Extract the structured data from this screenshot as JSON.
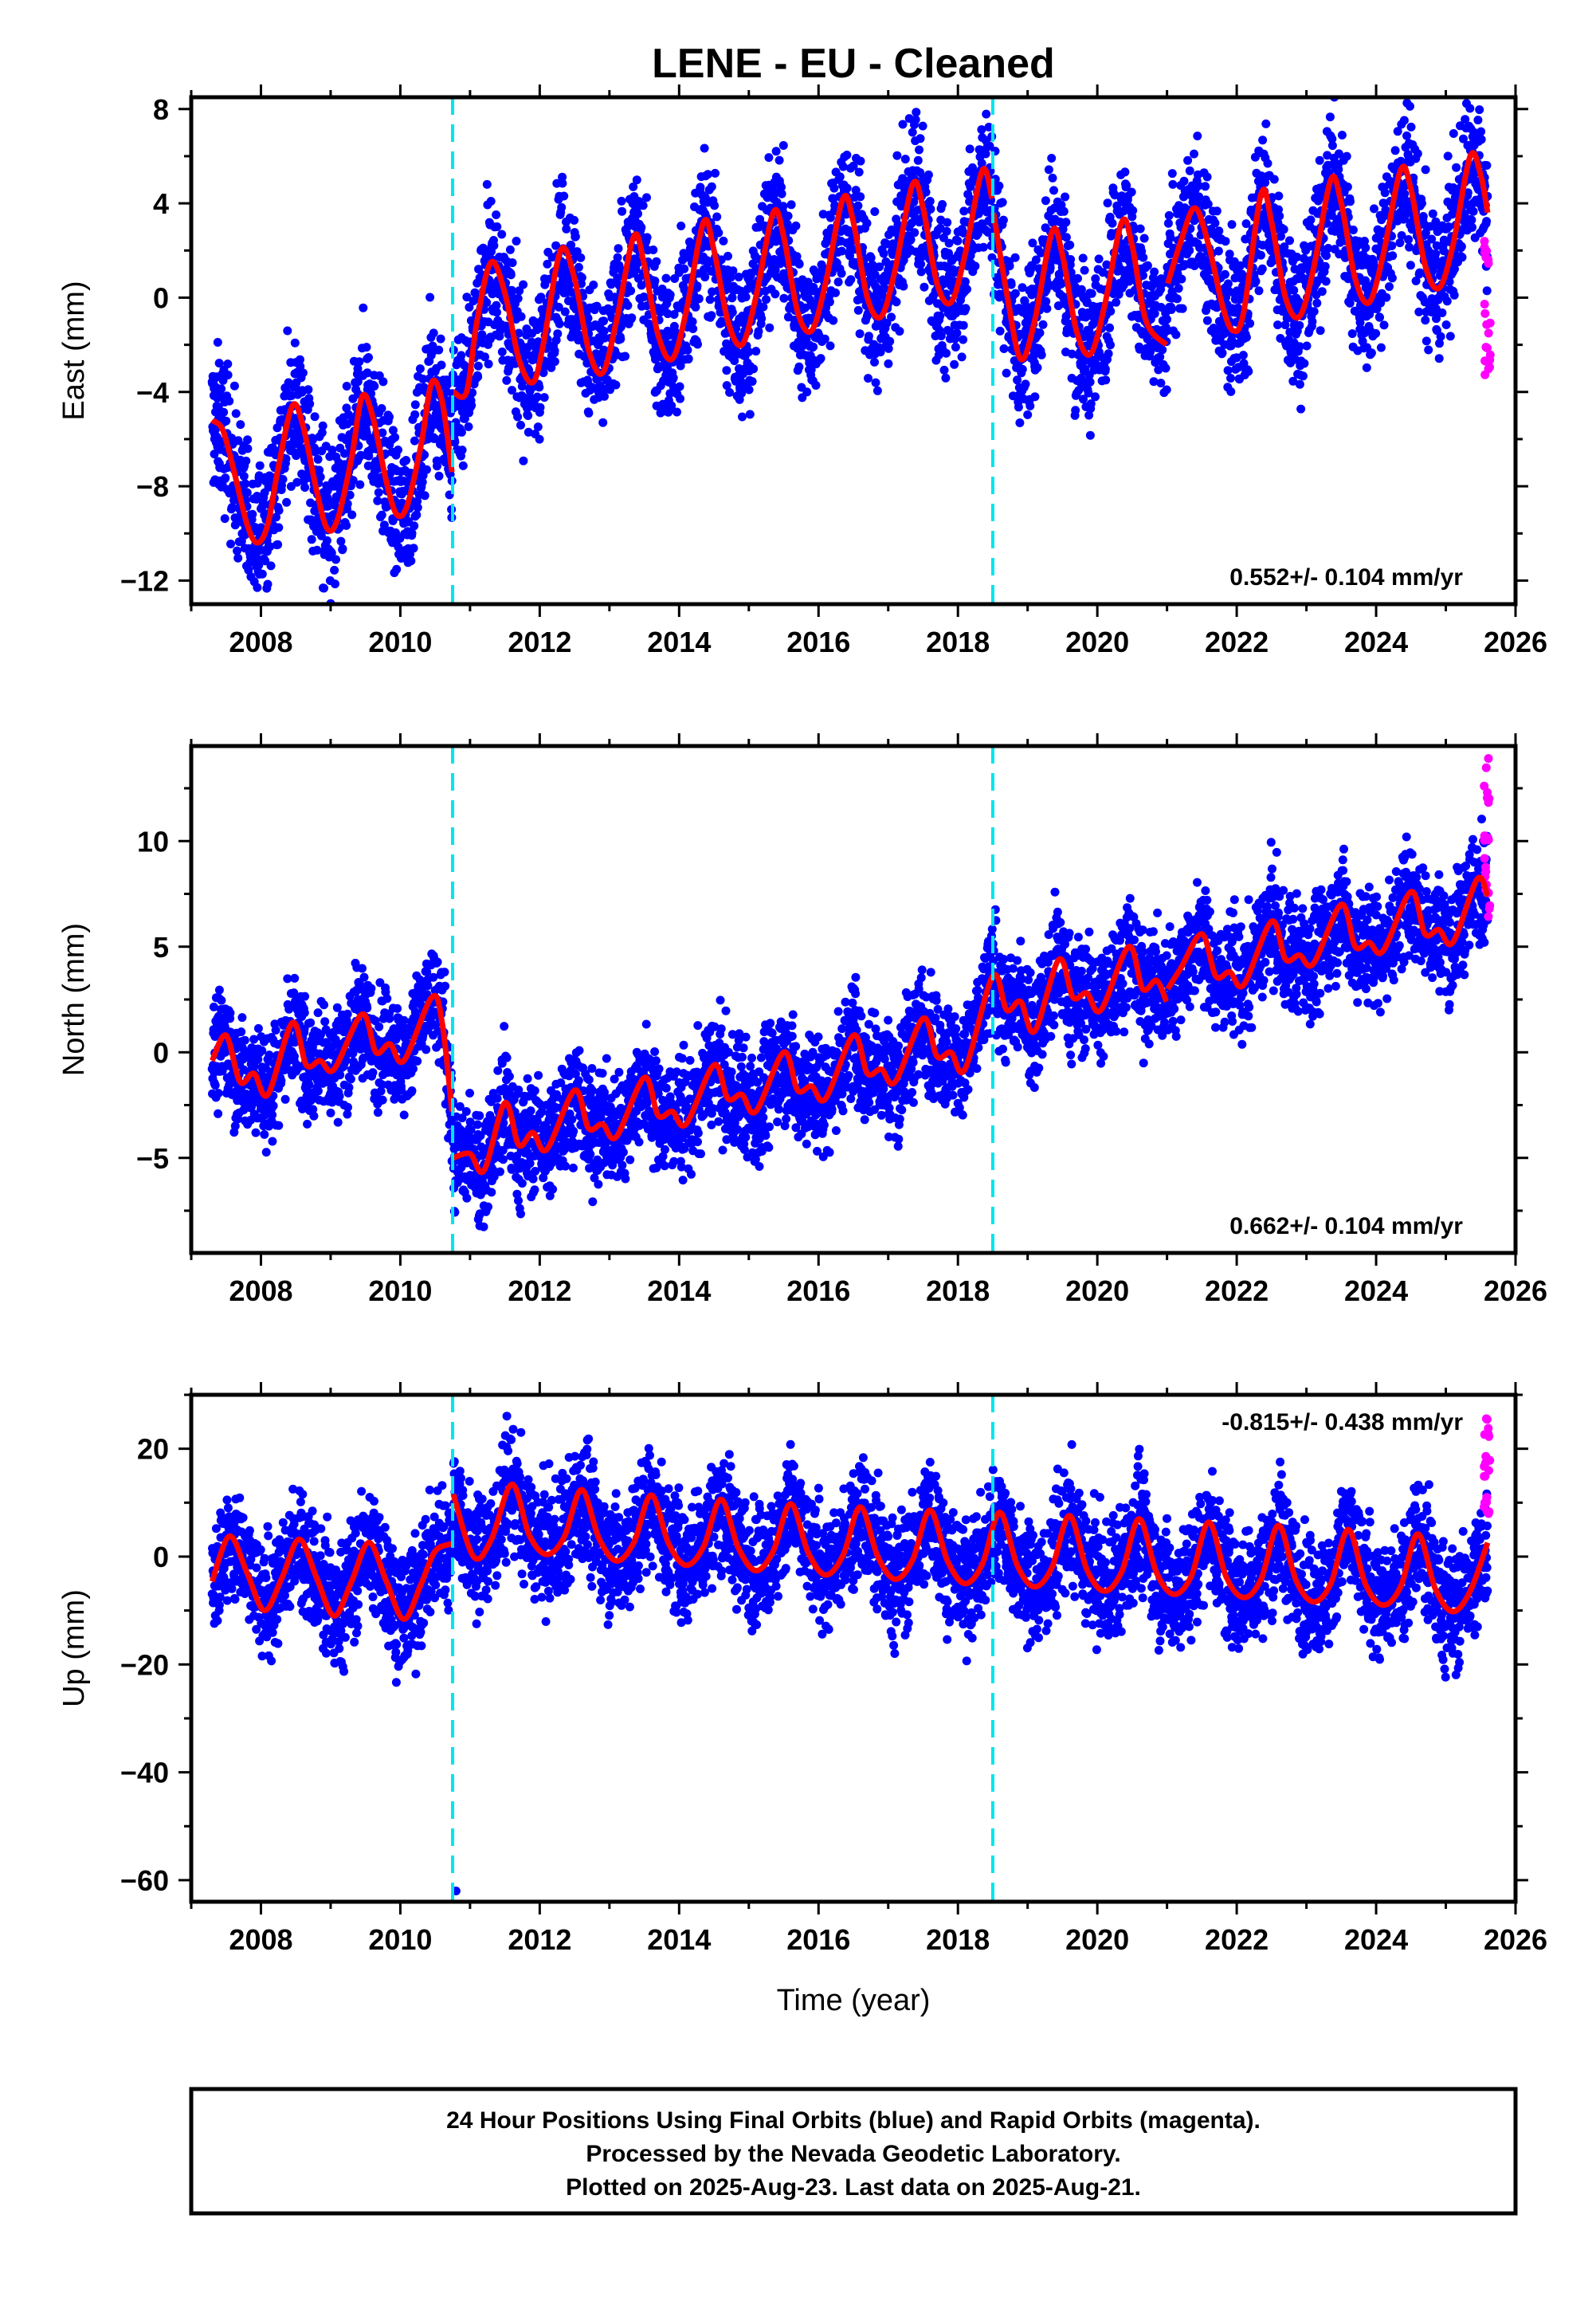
{
  "chart_data": {
    "title": "LENE  - EU - Cleaned",
    "xlabel": "Time (year)",
    "xlim": [
      2007.0,
      2026.0
    ],
    "xticks": [
      2008,
      2010,
      2012,
      2014,
      2016,
      2018,
      2020,
      2022,
      2024,
      2026
    ],
    "offsets": [
      2010.75,
      2018.5
    ],
    "colors": {
      "final": "#0000ff",
      "rapid": "#ff00ff",
      "model": "#ff0000",
      "offset": "#00e5ee"
    },
    "panels": [
      {
        "name": "east",
        "type": "scatter",
        "ylabel": "East (mm)",
        "ylim": [
          -13,
          8.5
        ],
        "yticks": [
          -12,
          -8,
          -4,
          0,
          4,
          8
        ],
        "rate": "0.552+/- 0.104 mm/yr",
        "rate_position": "bottom-right",
        "model_breaks": [
          2010.75,
          2018.5,
          2021.0
        ],
        "model_knots": [
          [
            2007.3,
            -5.2
          ],
          [
            2007.45,
            -5.6
          ],
          [
            2007.6,
            -7.2
          ],
          [
            2007.8,
            -9.6
          ],
          [
            2007.95,
            -10.4
          ],
          [
            2008.1,
            -9.6
          ],
          [
            2008.25,
            -7.2
          ],
          [
            2008.45,
            -4.6
          ],
          [
            2008.6,
            -5.4
          ],
          [
            2008.8,
            -8.2
          ],
          [
            2008.95,
            -9.8
          ],
          [
            2009.1,
            -9.4
          ],
          [
            2009.3,
            -6.8
          ],
          [
            2009.45,
            -4.2
          ],
          [
            2009.6,
            -5.0
          ],
          [
            2009.8,
            -7.8
          ],
          [
            2009.95,
            -9.2
          ],
          [
            2010.1,
            -8.8
          ],
          [
            2010.3,
            -6.2
          ],
          [
            2010.45,
            -3.6
          ],
          [
            2010.6,
            -4.4
          ],
          [
            2010.74,
            -7.4
          ],
          [
            2010.76,
            -4.0
          ],
          [
            2010.95,
            -4.0
          ],
          [
            2011.1,
            -1.0
          ],
          [
            2011.3,
            1.5
          ],
          [
            2011.5,
            0.2
          ],
          [
            2011.7,
            -2.6
          ],
          [
            2011.9,
            -3.6
          ],
          [
            2012.05,
            -2.0
          ],
          [
            2012.3,
            2.0
          ],
          [
            2012.5,
            0.8
          ],
          [
            2012.7,
            -2.2
          ],
          [
            2012.9,
            -3.2
          ],
          [
            2013.1,
            -1.0
          ],
          [
            2013.35,
            2.6
          ],
          [
            2013.5,
            1.4
          ],
          [
            2013.7,
            -1.6
          ],
          [
            2013.9,
            -2.6
          ],
          [
            2014.1,
            -0.6
          ],
          [
            2014.35,
            3.2
          ],
          [
            2014.5,
            2.0
          ],
          [
            2014.7,
            -1.0
          ],
          [
            2014.9,
            -2.0
          ],
          [
            2015.1,
            0.0
          ],
          [
            2015.35,
            3.6
          ],
          [
            2015.5,
            2.6
          ],
          [
            2015.7,
            -0.6
          ],
          [
            2015.9,
            -1.4
          ],
          [
            2016.1,
            0.6
          ],
          [
            2016.35,
            4.2
          ],
          [
            2016.5,
            3.2
          ],
          [
            2016.7,
            0.0
          ],
          [
            2016.9,
            -0.8
          ],
          [
            2017.1,
            1.2
          ],
          [
            2017.35,
            4.8
          ],
          [
            2017.5,
            3.8
          ],
          [
            2017.7,
            0.6
          ],
          [
            2017.9,
            -0.2
          ],
          [
            2018.1,
            1.8
          ],
          [
            2018.35,
            5.4
          ],
          [
            2018.49,
            4.2
          ],
          [
            2018.51,
            3.6
          ],
          [
            2018.7,
            0.2
          ],
          [
            2018.9,
            -2.6
          ],
          [
            2019.1,
            -1.0
          ],
          [
            2019.35,
            2.8
          ],
          [
            2019.5,
            1.8
          ],
          [
            2019.7,
            -1.4
          ],
          [
            2019.9,
            -2.4
          ],
          [
            2020.1,
            -0.4
          ],
          [
            2020.35,
            3.2
          ],
          [
            2020.5,
            2.2
          ],
          [
            2020.7,
            -1.0
          ],
          [
            2020.99,
            -2.0
          ],
          [
            2021.01,
            0.6
          ],
          [
            2021.2,
            2.4
          ],
          [
            2021.4,
            3.8
          ],
          [
            2021.6,
            2.2
          ],
          [
            2021.8,
            -0.4
          ],
          [
            2021.95,
            -1.4
          ],
          [
            2022.1,
            -0.6
          ],
          [
            2022.35,
            4.4
          ],
          [
            2022.5,
            3.2
          ],
          [
            2022.7,
            0.0
          ],
          [
            2022.9,
            -0.8
          ],
          [
            2023.1,
            1.2
          ],
          [
            2023.35,
            5.0
          ],
          [
            2023.5,
            4.0
          ],
          [
            2023.7,
            0.8
          ],
          [
            2023.9,
            -0.2
          ],
          [
            2024.1,
            1.8
          ],
          [
            2024.35,
            5.4
          ],
          [
            2024.5,
            4.6
          ],
          [
            2024.7,
            1.4
          ],
          [
            2024.9,
            0.4
          ],
          [
            2025.1,
            2.2
          ],
          [
            2025.35,
            6.0
          ],
          [
            2025.5,
            5.2
          ],
          [
            2025.6,
            3.6
          ]
        ],
        "scatter_spread": 2.8,
        "rapid": {
          "x_range": [
            2025.55,
            2025.64
          ],
          "y_range": [
            -3.4,
            2.4
          ]
        }
      },
      {
        "name": "north",
        "type": "scatter",
        "ylabel": "North (mm)",
        "ylim": [
          -9.5,
          14.5
        ],
        "yticks": [
          -5,
          0,
          5,
          10
        ],
        "rate": "0.662+/- 0.104 mm/yr",
        "rate_position": "bottom-right",
        "model_breaks": [
          2010.75,
          2021.0
        ],
        "model_knots": [
          [
            2007.3,
            -0.4
          ],
          [
            2007.5,
            0.8
          ],
          [
            2007.7,
            -1.4
          ],
          [
            2007.9,
            -1.0
          ],
          [
            2008.1,
            -2.0
          ],
          [
            2008.45,
            1.4
          ],
          [
            2008.65,
            -0.6
          ],
          [
            2008.85,
            -0.4
          ],
          [
            2009.05,
            -0.8
          ],
          [
            2009.45,
            1.8
          ],
          [
            2009.65,
            0.0
          ],
          [
            2009.85,
            0.4
          ],
          [
            2010.05,
            -0.4
          ],
          [
            2010.45,
            2.6
          ],
          [
            2010.6,
            1.4
          ],
          [
            2010.74,
            -2.8
          ],
          [
            2010.76,
            -5.0
          ],
          [
            2011.0,
            -4.8
          ],
          [
            2011.2,
            -5.6
          ],
          [
            2011.5,
            -2.4
          ],
          [
            2011.7,
            -4.4
          ],
          [
            2011.9,
            -3.8
          ],
          [
            2012.1,
            -4.6
          ],
          [
            2012.5,
            -1.8
          ],
          [
            2012.7,
            -3.6
          ],
          [
            2012.9,
            -3.4
          ],
          [
            2013.1,
            -4.0
          ],
          [
            2013.5,
            -1.2
          ],
          [
            2013.7,
            -3.0
          ],
          [
            2013.9,
            -2.8
          ],
          [
            2014.1,
            -3.4
          ],
          [
            2014.5,
            -0.6
          ],
          [
            2014.7,
            -2.2
          ],
          [
            2014.9,
            -2.0
          ],
          [
            2015.1,
            -2.8
          ],
          [
            2015.5,
            0.0
          ],
          [
            2015.7,
            -1.8
          ],
          [
            2015.9,
            -1.6
          ],
          [
            2016.1,
            -2.2
          ],
          [
            2016.5,
            0.8
          ],
          [
            2016.7,
            -1.0
          ],
          [
            2016.9,
            -0.8
          ],
          [
            2017.1,
            -1.4
          ],
          [
            2017.5,
            1.6
          ],
          [
            2017.7,
            -0.2
          ],
          [
            2017.9,
            0.0
          ],
          [
            2018.1,
            -0.8
          ],
          [
            2018.5,
            3.6
          ],
          [
            2018.7,
            2.0
          ],
          [
            2018.9,
            2.4
          ],
          [
            2019.1,
            1.0
          ],
          [
            2019.45,
            4.4
          ],
          [
            2019.65,
            2.6
          ],
          [
            2019.85,
            2.8
          ],
          [
            2020.05,
            2.0
          ],
          [
            2020.45,
            5.0
          ],
          [
            2020.65,
            3.0
          ],
          [
            2020.85,
            3.4
          ],
          [
            2020.99,
            2.4
          ],
          [
            2021.01,
            3.0
          ],
          [
            2021.2,
            4.0
          ],
          [
            2021.5,
            5.6
          ],
          [
            2021.7,
            3.6
          ],
          [
            2021.9,
            3.8
          ],
          [
            2022.1,
            3.2
          ],
          [
            2022.5,
            6.2
          ],
          [
            2022.7,
            4.4
          ],
          [
            2022.9,
            4.6
          ],
          [
            2023.1,
            4.2
          ],
          [
            2023.5,
            7.0
          ],
          [
            2023.7,
            5.0
          ],
          [
            2023.9,
            5.2
          ],
          [
            2024.1,
            4.8
          ],
          [
            2024.5,
            7.6
          ],
          [
            2024.7,
            5.6
          ],
          [
            2024.9,
            5.8
          ],
          [
            2025.1,
            5.2
          ],
          [
            2025.45,
            8.2
          ],
          [
            2025.6,
            7.4
          ]
        ],
        "scatter_spread": 2.4,
        "rapid": {
          "x_range": [
            2025.55,
            2025.64
          ],
          "y_range": [
            6.2,
            14.0
          ]
        }
      },
      {
        "name": "up",
        "type": "scatter",
        "ylabel": "Up (mm)",
        "ylim": [
          -64,
          30
        ],
        "yticks": [
          -60,
          -40,
          -20,
          0,
          20
        ],
        "rate": "-0.815+/- 0.438 mm/yr",
        "rate_position": "top-right",
        "model_breaks": [
          2010.75
        ],
        "model_knots": [
          [
            2007.3,
            -4.6
          ],
          [
            2007.55,
            3.8
          ],
          [
            2007.8,
            -3.0
          ],
          [
            2008.05,
            -10.0
          ],
          [
            2008.3,
            -4.0
          ],
          [
            2008.55,
            3.2
          ],
          [
            2008.8,
            -4.0
          ],
          [
            2009.05,
            -11.0
          ],
          [
            2009.3,
            -4.6
          ],
          [
            2009.55,
            2.6
          ],
          [
            2009.8,
            -4.6
          ],
          [
            2010.05,
            -11.6
          ],
          [
            2010.3,
            -5.0
          ],
          [
            2010.5,
            1.0
          ],
          [
            2010.74,
            2.4
          ],
          [
            2010.76,
            11.6
          ],
          [
            2011.05,
            0.0
          ],
          [
            2011.3,
            3.0
          ],
          [
            2011.6,
            13.4
          ],
          [
            2011.85,
            4.0
          ],
          [
            2012.1,
            0.4
          ],
          [
            2012.35,
            3.6
          ],
          [
            2012.6,
            12.4
          ],
          [
            2012.85,
            3.4
          ],
          [
            2013.1,
            -0.8
          ],
          [
            2013.35,
            2.6
          ],
          [
            2013.6,
            11.4
          ],
          [
            2013.85,
            2.4
          ],
          [
            2014.1,
            -1.6
          ],
          [
            2014.35,
            1.8
          ],
          [
            2014.6,
            10.6
          ],
          [
            2014.85,
            1.6
          ],
          [
            2015.1,
            -2.6
          ],
          [
            2015.35,
            1.0
          ],
          [
            2015.6,
            9.8
          ],
          [
            2015.85,
            0.8
          ],
          [
            2016.1,
            -3.4
          ],
          [
            2016.35,
            0.2
          ],
          [
            2016.6,
            9.2
          ],
          [
            2016.85,
            0.0
          ],
          [
            2017.1,
            -4.2
          ],
          [
            2017.35,
            -0.6
          ],
          [
            2017.6,
            8.6
          ],
          [
            2017.85,
            -0.8
          ],
          [
            2018.1,
            -5.0
          ],
          [
            2018.35,
            -1.4
          ],
          [
            2018.6,
            8.2
          ],
          [
            2018.85,
            -1.6
          ],
          [
            2019.1,
            -5.6
          ],
          [
            2019.35,
            -2.0
          ],
          [
            2019.6,
            7.6
          ],
          [
            2019.85,
            -2.4
          ],
          [
            2020.1,
            -6.4
          ],
          [
            2020.35,
            -2.8
          ],
          [
            2020.6,
            7.0
          ],
          [
            2020.85,
            -3.0
          ],
          [
            2021.1,
            -7.0
          ],
          [
            2021.35,
            -3.6
          ],
          [
            2021.6,
            6.4
          ],
          [
            2021.85,
            -3.8
          ],
          [
            2022.1,
            -7.6
          ],
          [
            2022.35,
            -4.2
          ],
          [
            2022.6,
            5.8
          ],
          [
            2022.85,
            -4.4
          ],
          [
            2023.1,
            -8.4
          ],
          [
            2023.35,
            -5.0
          ],
          [
            2023.6,
            5.0
          ],
          [
            2023.85,
            -5.2
          ],
          [
            2024.1,
            -9.0
          ],
          [
            2024.35,
            -5.6
          ],
          [
            2024.6,
            4.2
          ],
          [
            2024.85,
            -6.0
          ],
          [
            2025.1,
            -10.2
          ],
          [
            2025.35,
            -6.4
          ],
          [
            2025.6,
            2.6
          ]
        ],
        "scatter_spread": 10.0,
        "outliers": [
          [
            2010.8,
            -62.0
          ]
        ],
        "rapid": {
          "x_range": [
            2025.55,
            2025.64
          ],
          "y_range": [
            6.0,
            28.0
          ]
        }
      }
    ],
    "footer": [
      "24 Hour Positions Using Final Orbits (blue) and Rapid Orbits (magenta).",
      "Processed by the Nevada Geodetic Laboratory.",
      "Plotted on 2025-Aug-23. Last data on 2025-Aug-21."
    ]
  }
}
